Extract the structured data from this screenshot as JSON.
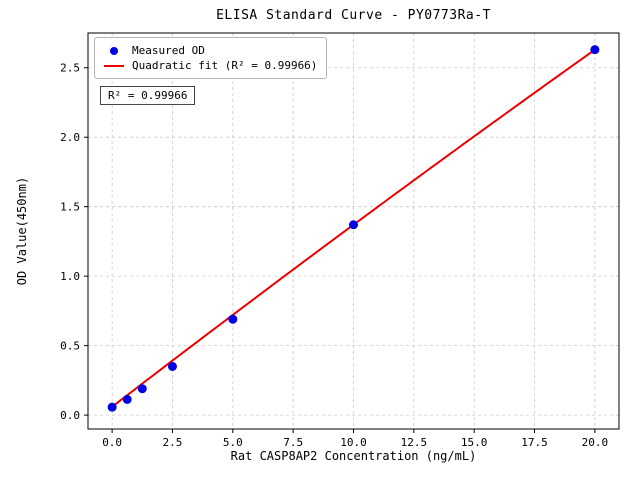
{
  "chart_data": {
    "type": "scatter",
    "title": "ELISA Standard Curve - PY0773Ra-T",
    "xlabel": "Rat CASP8AP2 Concentration (ng/mL)",
    "ylabel": "OD Value(450nm)",
    "annotation": "R² = 0.99966",
    "r_squared": 0.99966,
    "grid": true,
    "legend_position": "upper left",
    "xlim": [
      -1,
      21
    ],
    "ylim": [
      -0.1,
      2.75
    ],
    "xticks": [
      0.0,
      2.5,
      5.0,
      7.5,
      10.0,
      12.5,
      15.0,
      17.5,
      20.0
    ],
    "xtick_labels": [
      "0.0",
      "2.5",
      "5.0",
      "7.5",
      "10.0",
      "12.5",
      "15.0",
      "17.5",
      "20.0"
    ],
    "yticks": [
      0.0,
      0.5,
      1.0,
      1.5,
      2.0,
      2.5
    ],
    "ytick_labels": [
      "0.0",
      "0.5",
      "1.0",
      "1.5",
      "2.0",
      "2.5"
    ],
    "legend": [
      {
        "label": "Measured OD",
        "marker": "circle",
        "color": "#0000e6"
      },
      {
        "label": "Quadratic fit (R² = 0.99966)",
        "marker": "line",
        "color": "#ee0000"
      }
    ],
    "series": [
      {
        "name": "Measured OD",
        "type": "scatter",
        "color": "#0000e6",
        "x": [
          0,
          0.625,
          1.25,
          2.5,
          5,
          10,
          20
        ],
        "y": [
          0.057,
          0.113,
          0.19,
          0.35,
          0.69,
          1.37,
          2.63
        ]
      },
      {
        "name": "Quadratic fit (R² = 0.99966)",
        "type": "line",
        "color": "#ee0000",
        "fit": {
          "a": -0.00025,
          "b": 0.1335,
          "c": 0.06
        },
        "x_range": [
          0,
          20
        ]
      }
    ],
    "colors": {
      "grid": "#c9c9c9",
      "axis": "#000000",
      "background": "#ffffff"
    }
  }
}
